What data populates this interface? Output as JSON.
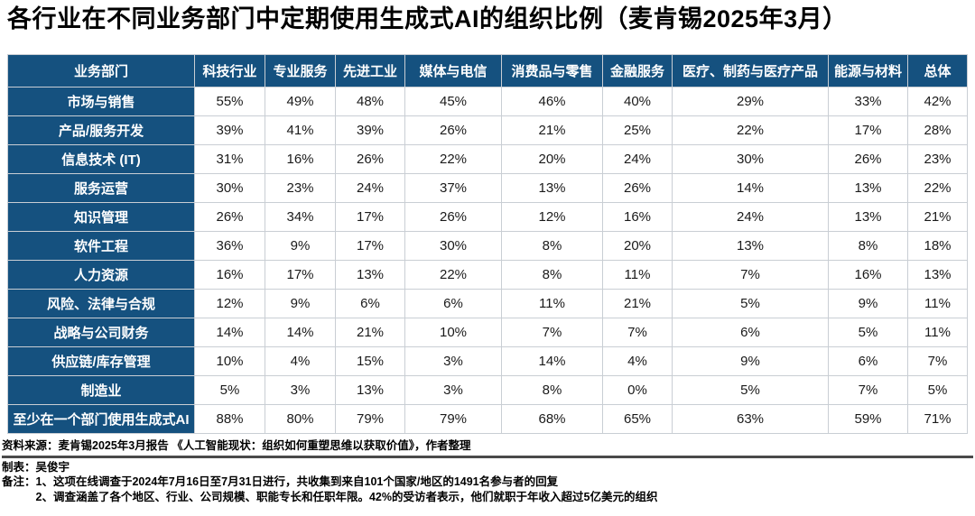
{
  "title": "各行业在不同业务部门中定期使用生成式AI的组织比例（麦肯锡2025年3月）",
  "chart_data": {
    "type": "table",
    "title": "各行业在不同业务部门中定期使用生成式AI的组织比例（麦肯锡2025年3月）",
    "columns": [
      "业务部门",
      "科技行业",
      "专业服务",
      "先进工业",
      "媒体与电信",
      "消费品与零售",
      "金融服务",
      "医疗、制药与医疗产品",
      "能源与材料",
      "总体"
    ],
    "rows": [
      {
        "label": "市场与销售",
        "values": [
          "55%",
          "49%",
          "48%",
          "45%",
          "46%",
          "40%",
          "29%",
          "33%",
          "42%"
        ]
      },
      {
        "label": "产品/服务开发",
        "values": [
          "39%",
          "41%",
          "39%",
          "26%",
          "21%",
          "25%",
          "22%",
          "17%",
          "28%"
        ]
      },
      {
        "label": "信息技术 (IT)",
        "values": [
          "31%",
          "16%",
          "26%",
          "22%",
          "20%",
          "24%",
          "30%",
          "26%",
          "23%"
        ]
      },
      {
        "label": "服务运营",
        "values": [
          "30%",
          "23%",
          "24%",
          "37%",
          "13%",
          "26%",
          "14%",
          "13%",
          "22%"
        ]
      },
      {
        "label": "知识管理",
        "values": [
          "26%",
          "34%",
          "17%",
          "26%",
          "12%",
          "16%",
          "24%",
          "13%",
          "21%"
        ]
      },
      {
        "label": "软件工程",
        "values": [
          "36%",
          "9%",
          "17%",
          "30%",
          "8%",
          "20%",
          "13%",
          "8%",
          "18%"
        ]
      },
      {
        "label": "人力资源",
        "values": [
          "16%",
          "17%",
          "13%",
          "22%",
          "8%",
          "11%",
          "7%",
          "16%",
          "13%"
        ]
      },
      {
        "label": "风险、法律与合规",
        "values": [
          "12%",
          "9%",
          "6%",
          "6%",
          "11%",
          "21%",
          "5%",
          "9%",
          "11%"
        ]
      },
      {
        "label": "战略与公司财务",
        "values": [
          "14%",
          "14%",
          "21%",
          "10%",
          "7%",
          "7%",
          "6%",
          "5%",
          "11%"
        ]
      },
      {
        "label": "供应链/库存管理",
        "values": [
          "10%",
          "4%",
          "15%",
          "3%",
          "14%",
          "4%",
          "9%",
          "6%",
          "7%"
        ]
      },
      {
        "label": "制造业",
        "values": [
          "5%",
          "3%",
          "13%",
          "3%",
          "8%",
          "0%",
          "5%",
          "7%",
          "5%"
        ]
      },
      {
        "label": "至少在一个部门使用生成式AI",
        "values": [
          "88%",
          "80%",
          "79%",
          "79%",
          "68%",
          "65%",
          "63%",
          "59%",
          "71%"
        ]
      }
    ]
  },
  "footer": {
    "source": "资料来源：麦肯锡2025年3月报告 《人工智能现状：组织如何重塑思维以获取价值》，作者整理",
    "author": "制表：吴俊宇",
    "notes_label": "备注：",
    "note1": "1、这项在线调查于2024年7月16日至7月31日进行，共收集到来自101个国家/地区的1491名参与者的回复",
    "note2": "2、调查涵盖了各个地区、行业、公司规模、职能专长和任职年限。42%的受访者表示，他们就职于年收入超过5亿美元的组织"
  },
  "colors": {
    "header_blue": "#15517F",
    "border": "#C9CED4",
    "divider": "#4A4A4A",
    "cell_text": "#1A1A1A"
  }
}
